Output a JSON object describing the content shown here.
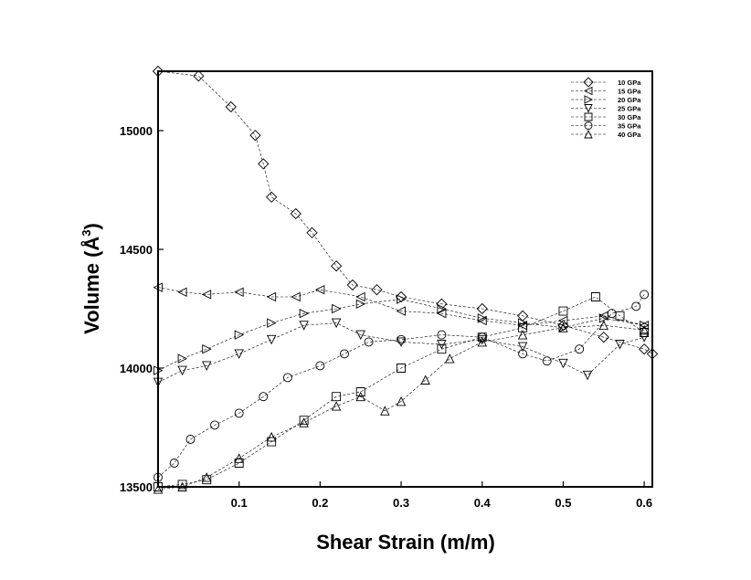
{
  "chart_data": {
    "type": "scatter",
    "title": "",
    "xlabel": "Shear Strain (m/m)",
    "ylabel": "Volume (Å",
    "ylabel_sup": "3",
    "ylabel_close": ")",
    "xlim": [
      0.0,
      0.61
    ],
    "ylim": [
      13500,
      15250
    ],
    "xticks": [
      0.1,
      0.2,
      0.3,
      0.4,
      0.5,
      0.6
    ],
    "xtick_labels": [
      "0.1",
      "0.2",
      "0.3",
      "0.4",
      "0.5",
      "0.6"
    ],
    "yticks": [
      13500,
      14000,
      14500,
      15000
    ],
    "ytick_labels": [
      "13500",
      "14000",
      "14500",
      "15000"
    ],
    "legend_position": "top-right",
    "grid": false,
    "series": [
      {
        "name": "10 GPa",
        "marker": "diamond",
        "x": [
          0.0,
          0.05,
          0.09,
          0.12,
          0.13,
          0.14,
          0.17,
          0.19,
          0.22,
          0.24,
          0.27,
          0.3,
          0.35,
          0.4,
          0.45,
          0.5,
          0.55,
          0.6,
          0.61
        ],
        "y": [
          15250,
          15230,
          15100,
          14980,
          14860,
          14720,
          14650,
          14570,
          14430,
          14350,
          14330,
          14300,
          14270,
          14250,
          14220,
          14180,
          14130,
          14080,
          14060
        ]
      },
      {
        "name": "15 GPa",
        "marker": "triangle-left",
        "x": [
          0.0,
          0.03,
          0.06,
          0.1,
          0.14,
          0.17,
          0.2,
          0.25,
          0.3,
          0.35,
          0.4,
          0.45,
          0.5,
          0.55,
          0.6
        ],
        "y": [
          14340,
          14320,
          14310,
          14320,
          14300,
          14300,
          14330,
          14300,
          14240,
          14230,
          14200,
          14180,
          14200,
          14220,
          14180
        ]
      },
      {
        "name": "20 GPa",
        "marker": "triangle-right",
        "x": [
          0.0,
          0.03,
          0.06,
          0.1,
          0.14,
          0.18,
          0.22,
          0.25,
          0.3,
          0.35,
          0.4,
          0.45,
          0.5,
          0.55,
          0.6
        ],
        "y": [
          13990,
          14040,
          14080,
          14140,
          14190,
          14230,
          14250,
          14270,
          14290,
          14250,
          14210,
          14190,
          14170,
          14210,
          14180
        ]
      },
      {
        "name": "25 GPa",
        "marker": "triangle-down",
        "x": [
          0.0,
          0.03,
          0.06,
          0.1,
          0.14,
          0.18,
          0.22,
          0.25,
          0.3,
          0.35,
          0.4,
          0.45,
          0.5,
          0.53,
          0.57,
          0.6
        ],
        "y": [
          13940,
          13990,
          14010,
          14060,
          14120,
          14180,
          14190,
          14140,
          14110,
          14100,
          14120,
          14090,
          14020,
          13970,
          14100,
          14130
        ]
      },
      {
        "name": "30 GPa",
        "marker": "square",
        "x": [
          0.0,
          0.03,
          0.06,
          0.1,
          0.14,
          0.18,
          0.22,
          0.25,
          0.3,
          0.35,
          0.4,
          0.45,
          0.5,
          0.54,
          0.57,
          0.6
        ],
        "y": [
          13500,
          13510,
          13530,
          13600,
          13690,
          13780,
          13880,
          13900,
          14000,
          14080,
          14130,
          14170,
          14240,
          14300,
          14220,
          14150
        ]
      },
      {
        "name": "35 GPa",
        "marker": "circle",
        "x": [
          0.0,
          0.02,
          0.04,
          0.07,
          0.1,
          0.13,
          0.16,
          0.2,
          0.23,
          0.26,
          0.3,
          0.35,
          0.4,
          0.45,
          0.48,
          0.52,
          0.56,
          0.59,
          0.6
        ],
        "y": [
          13540,
          13600,
          13700,
          13760,
          13810,
          13880,
          13960,
          14010,
          14060,
          14110,
          14120,
          14140,
          14130,
          14060,
          14030,
          14080,
          14230,
          14260,
          14310
        ]
      },
      {
        "name": "40 GPa",
        "marker": "triangle-up",
        "x": [
          0.0,
          0.03,
          0.06,
          0.1,
          0.14,
          0.18,
          0.22,
          0.25,
          0.28,
          0.3,
          0.33,
          0.36,
          0.4,
          0.45,
          0.5,
          0.55,
          0.6
        ],
        "y": [
          13490,
          13500,
          13540,
          13620,
          13710,
          13770,
          13840,
          13880,
          13820,
          13860,
          13950,
          14040,
          14110,
          14140,
          14170,
          14180,
          14160
        ]
      }
    ]
  }
}
